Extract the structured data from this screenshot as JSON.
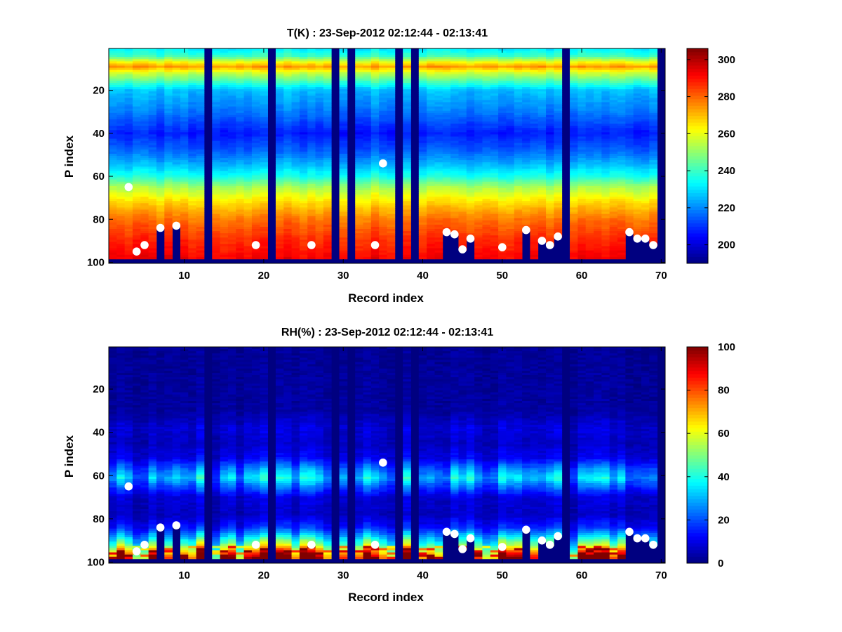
{
  "chart_data": [
    {
      "type": "heatmap",
      "title": "T(K) : 23-Sep-2012 02:12:44 - 02:13:41",
      "xlabel": "Record index",
      "ylabel": "P index",
      "xlim": [
        0.5,
        70.5
      ],
      "ylim": [
        0.5,
        100.5
      ],
      "y_reversed": true,
      "xticks": [
        10,
        20,
        30,
        40,
        50,
        60,
        70
      ],
      "yticks": [
        20,
        40,
        60,
        80,
        100
      ],
      "colormap": "jet",
      "clim": [
        190,
        306
      ],
      "colorbar_ticks": [
        200,
        220,
        240,
        260,
        280,
        300
      ],
      "profile_by_p_index": [
        {
          "p": 1,
          "value": 232
        },
        {
          "p": 4,
          "value": 240
        },
        {
          "p": 7,
          "value": 262
        },
        {
          "p": 9,
          "value": 274
        },
        {
          "p": 12,
          "value": 256
        },
        {
          "p": 20,
          "value": 226
        },
        {
          "p": 30,
          "value": 218
        },
        {
          "p": 40,
          "value": 207
        },
        {
          "p": 48,
          "value": 215
        },
        {
          "p": 55,
          "value": 226
        },
        {
          "p": 60,
          "value": 236
        },
        {
          "p": 65,
          "value": 252
        },
        {
          "p": 72,
          "value": 266
        },
        {
          "p": 80,
          "value": 278
        },
        {
          "p": 90,
          "value": 287
        },
        {
          "p": 98,
          "value": 292
        }
      ],
      "invalid_columns": [
        13,
        21,
        29,
        31,
        37,
        39,
        58,
        70
      ],
      "cutoff_columns": [
        {
          "x": 7,
          "p": 84
        },
        {
          "x": 9,
          "p": 83
        },
        {
          "x": 43,
          "p": 86
        },
        {
          "x": 44,
          "p": 87
        },
        {
          "x": 45,
          "p": 94
        },
        {
          "x": 46,
          "p": 89
        },
        {
          "x": 53,
          "p": 85
        },
        {
          "x": 55,
          "p": 90
        },
        {
          "x": 56,
          "p": 92
        },
        {
          "x": 57,
          "p": 88
        },
        {
          "x": 66,
          "p": 86
        },
        {
          "x": 67,
          "p": 89
        },
        {
          "x": 68,
          "p": 89
        },
        {
          "x": 69,
          "p": 92
        }
      ],
      "markers": [
        {
          "x": 3,
          "y": 65
        },
        {
          "x": 4,
          "y": 95
        },
        {
          "x": 5,
          "y": 92
        },
        {
          "x": 7,
          "y": 84
        },
        {
          "x": 9,
          "y": 83
        },
        {
          "x": 19,
          "y": 92
        },
        {
          "x": 26,
          "y": 92
        },
        {
          "x": 34,
          "y": 92
        },
        {
          "x": 35,
          "y": 54
        },
        {
          "x": 43,
          "y": 86
        },
        {
          "x": 44,
          "y": 87
        },
        {
          "x": 45,
          "y": 94
        },
        {
          "x": 46,
          "y": 89
        },
        {
          "x": 50,
          "y": 93
        },
        {
          "x": 53,
          "y": 85
        },
        {
          "x": 55,
          "y": 90
        },
        {
          "x": 56,
          "y": 92
        },
        {
          "x": 57,
          "y": 88
        },
        {
          "x": 66,
          "y": 86
        },
        {
          "x": 67,
          "y": 89
        },
        {
          "x": 68,
          "y": 89
        },
        {
          "x": 69,
          "y": 92
        }
      ]
    },
    {
      "type": "heatmap",
      "title": "RH(%) : 23-Sep-2012 02:12:44 - 02:13:41",
      "xlabel": "Record index",
      "ylabel": "P index",
      "xlim": [
        0.5,
        70.5
      ],
      "ylim": [
        0.5,
        100.5
      ],
      "y_reversed": true,
      "xticks": [
        10,
        20,
        30,
        40,
        50,
        60,
        70
      ],
      "yticks": [
        20,
        40,
        60,
        80,
        100
      ],
      "colormap": "jet",
      "clim": [
        0,
        100
      ],
      "colorbar_ticks": [
        0,
        20,
        40,
        60,
        80,
        100
      ],
      "profile_by_p_index": [
        {
          "p": 1,
          "value": 2
        },
        {
          "p": 30,
          "value": 3
        },
        {
          "p": 38,
          "value": 8
        },
        {
          "p": 45,
          "value": 6
        },
        {
          "p": 52,
          "value": 10
        },
        {
          "p": 57,
          "value": 22
        },
        {
          "p": 61,
          "value": 30
        },
        {
          "p": 65,
          "value": 20
        },
        {
          "p": 70,
          "value": 8
        },
        {
          "p": 78,
          "value": 6
        },
        {
          "p": 84,
          "value": 14
        },
        {
          "p": 88,
          "value": 28
        },
        {
          "p": 92,
          "value": 45
        },
        {
          "p": 95,
          "value": 65
        },
        {
          "p": 98,
          "value": 82
        }
      ],
      "invalid_columns": [
        13,
        21,
        29,
        31,
        37,
        39,
        58,
        70
      ],
      "cutoff_columns": [
        {
          "x": 7,
          "p": 84
        },
        {
          "x": 9,
          "p": 83
        },
        {
          "x": 43,
          "p": 86
        },
        {
          "x": 44,
          "p": 87
        },
        {
          "x": 45,
          "p": 94
        },
        {
          "x": 46,
          "p": 89
        },
        {
          "x": 53,
          "p": 85
        },
        {
          "x": 55,
          "p": 90
        },
        {
          "x": 56,
          "p": 92
        },
        {
          "x": 57,
          "p": 88
        },
        {
          "x": 66,
          "p": 86
        },
        {
          "x": 67,
          "p": 89
        },
        {
          "x": 68,
          "p": 89
        },
        {
          "x": 69,
          "p": 92
        }
      ],
      "markers": [
        {
          "x": 3,
          "y": 65
        },
        {
          "x": 4,
          "y": 95
        },
        {
          "x": 5,
          "y": 92
        },
        {
          "x": 7,
          "y": 84
        },
        {
          "x": 9,
          "y": 83
        },
        {
          "x": 19,
          "y": 92
        },
        {
          "x": 26,
          "y": 92
        },
        {
          "x": 34,
          "y": 92
        },
        {
          "x": 35,
          "y": 54
        },
        {
          "x": 43,
          "y": 86
        },
        {
          "x": 44,
          "y": 87
        },
        {
          "x": 45,
          "y": 94
        },
        {
          "x": 46,
          "y": 89
        },
        {
          "x": 50,
          "y": 93
        },
        {
          "x": 53,
          "y": 85
        },
        {
          "x": 55,
          "y": 90
        },
        {
          "x": 56,
          "y": 92
        },
        {
          "x": 57,
          "y": 88
        },
        {
          "x": 66,
          "y": 86
        },
        {
          "x": 67,
          "y": 89
        },
        {
          "x": 68,
          "y": 89
        },
        {
          "x": 69,
          "y": 92
        }
      ]
    }
  ]
}
